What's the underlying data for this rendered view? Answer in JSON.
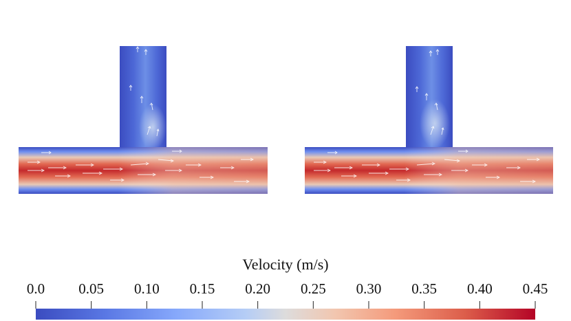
{
  "colorbar": {
    "title": "Velocity (m/s)",
    "min": 0.0,
    "max": 0.45,
    "ticks": [
      "0.0",
      "0.05",
      "0.10",
      "0.15",
      "0.20",
      "0.25",
      "0.30",
      "0.35",
      "0.40",
      "0.45"
    ],
    "colors": [
      "#3b4cc0",
      "#6788ee",
      "#9abbff",
      "#c9d7f0",
      "#edd1c2",
      "#f7a889",
      "#e26952",
      "#b40426"
    ]
  },
  "panels": [
    {
      "name": "left-junction"
    },
    {
      "name": "right-junction"
    }
  ]
}
